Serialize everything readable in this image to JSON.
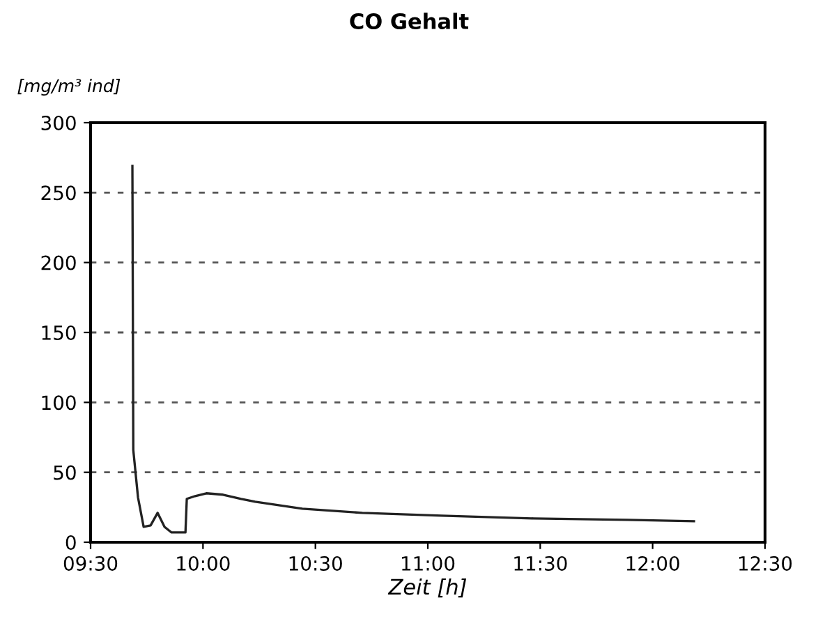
{
  "chart_data": {
    "type": "line",
    "title": "CO Gehalt",
    "ylabel": "[mg/m³ ind]",
    "xlabel": "Zeit [h]",
    "series": [
      {
        "color": "#222222",
        "x": [
          9.686,
          9.69,
          9.711,
          9.736,
          9.767,
          9.798,
          9.829,
          9.86,
          9.903,
          9.922,
          9.928,
          9.965,
          10.015,
          10.089,
          10.17,
          10.232,
          10.442,
          10.709,
          11.062,
          11.471,
          11.887,
          12.184
        ],
        "values": [
          269,
          66,
          32,
          11,
          12,
          21,
          11,
          7,
          7,
          7,
          31,
          33,
          35,
          34,
          31,
          29,
          24,
          21,
          19,
          17,
          16,
          15
        ]
      }
    ],
    "xlim": [
      9.5,
      12.5
    ],
    "xticks": [
      {
        "value": 9.5,
        "label": "09:30"
      },
      {
        "value": 10,
        "label": "10:00"
      },
      {
        "value": 10.5,
        "label": "10:30"
      },
      {
        "value": 11,
        "label": "11:00"
      },
      {
        "value": 11.5,
        "label": "11:30"
      },
      {
        "value": 12,
        "label": "12:00"
      },
      {
        "value": 12.5,
        "label": "12:30"
      }
    ],
    "ylim": [
      0,
      300
    ],
    "yticks": [
      0,
      50,
      100,
      150,
      200,
      250,
      300
    ],
    "grid": "y",
    "marker": "none",
    "line_style": "solid",
    "legend": false
  }
}
